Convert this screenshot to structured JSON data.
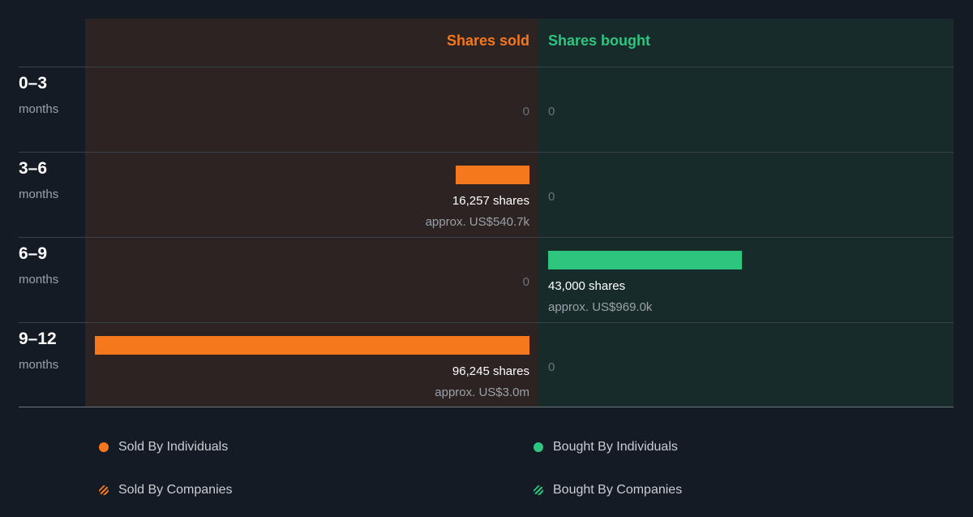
{
  "chart_data": {
    "type": "bar",
    "headers": {
      "sold": "Shares sold",
      "bought": "Shares bought"
    },
    "periods": [
      {
        "value": "0–3",
        "unit": "months",
        "sold": {
          "shares": 0,
          "label": "0"
        },
        "bought": {
          "shares": 0,
          "label": "0"
        }
      },
      {
        "value": "3–6",
        "unit": "months",
        "sold": {
          "shares": 16257,
          "shares_label": "16,257 shares",
          "approx": "approx. US$540.7k"
        },
        "bought": {
          "shares": 0,
          "label": "0"
        }
      },
      {
        "value": "6–9",
        "unit": "months",
        "sold": {
          "shares": 0,
          "label": "0"
        },
        "bought": {
          "shares": 43000,
          "shares_label": "43,000 shares",
          "approx": "approx. US$969.0k"
        }
      },
      {
        "value": "9–12",
        "unit": "months",
        "sold": {
          "shares": 96245,
          "shares_label": "96,245 shares",
          "approx": "approx. US$3.0m"
        },
        "bought": {
          "shares": 0,
          "label": "0"
        }
      }
    ],
    "legend": [
      {
        "label": "Sold By Individuals",
        "marker": "dot",
        "color": "#f6781d"
      },
      {
        "label": "Bought By Individuals",
        "marker": "dot",
        "color": "#2ec57f"
      },
      {
        "label": "Sold By Companies",
        "marker": "stripe",
        "color": "#f6781d"
      },
      {
        "label": "Bought By Companies",
        "marker": "stripe",
        "color": "#2ec57f"
      }
    ],
    "colors": {
      "sold": "#f6781d",
      "bought": "#2ec57f"
    }
  }
}
